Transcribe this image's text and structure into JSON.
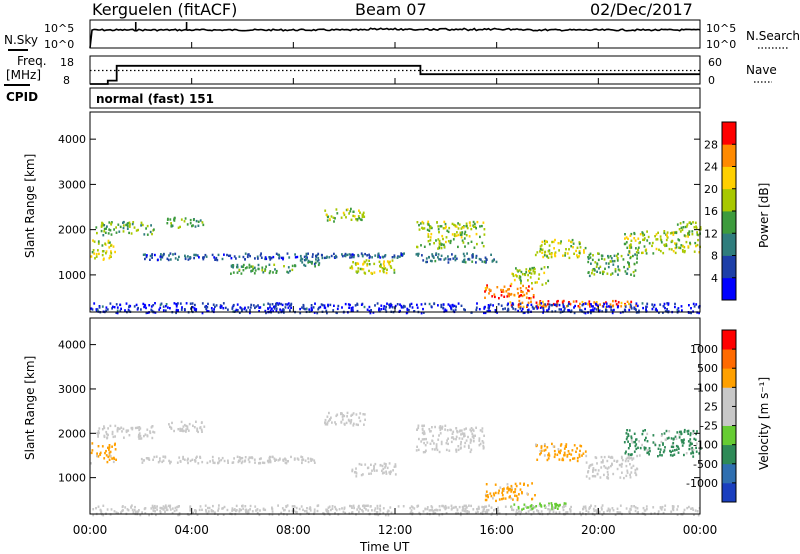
{
  "header": {
    "site": "Kerguelen (fitACF)",
    "beam": "Beam 07",
    "date": "02/Dec/2017"
  },
  "panels": {
    "nsky": {
      "label": "N.Sky",
      "left_ticks": [
        "10^5",
        "10^0"
      ],
      "right_ticks": [
        "10^5",
        "10^0"
      ],
      "right_label": "N.Search"
    },
    "freq": {
      "label_line1": "Freq.",
      "label_line2": "[MHz]",
      "left_ticks": [
        "18",
        "8"
      ],
      "right_ticks": [
        "60",
        "0"
      ],
      "right_label": "Nave",
      "cpid_label": "CPID"
    },
    "cpid": {
      "text": "normal (fast) 151"
    }
  },
  "chart_data": [
    {
      "type": "heatmap",
      "name_panel": "power",
      "ylabel": "Slant Range [km]",
      "xlabel": "Time UT",
      "x_range_hours": [
        0,
        24
      ],
      "ylim": [
        180,
        4600
      ],
      "y_ticks": [
        "1000",
        "2000",
        "3000",
        "4000"
      ],
      "x_ticks": [
        "00:00",
        "04:00",
        "08:00",
        "12:00",
        "16:00",
        "20:00",
        "00:00"
      ],
      "colorbar": {
        "label": "Power [dB]",
        "tick_labels": [
          "4",
          "8",
          "12",
          "16",
          "20",
          "24",
          "28"
        ],
        "colors": [
          "#0000ff",
          "#1d3fa8",
          "#2f7d7d",
          "#3d9b3d",
          "#a8c800",
          "#ffd000",
          "#ff8a00",
          "#ff0000"
        ]
      },
      "scatter_regions": [
        {
          "t0": 0.0,
          "t1": 1.0,
          "r0": 1350,
          "r1": 1800,
          "level": 0.62
        },
        {
          "t0": 0.2,
          "t1": 2.5,
          "r0": 1900,
          "r1": 2200,
          "level": 0.45
        },
        {
          "t0": 3.0,
          "t1": 4.5,
          "r0": 2050,
          "r1": 2300,
          "level": 0.4
        },
        {
          "t0": 2.0,
          "t1": 9.0,
          "r0": 1350,
          "r1": 1500,
          "level": 0.18
        },
        {
          "t0": 5.5,
          "t1": 8.0,
          "r0": 1050,
          "r1": 1250,
          "level": 0.4
        },
        {
          "t0": 8.0,
          "t1": 9.0,
          "r0": 1200,
          "r1": 1400,
          "level": 0.35
        },
        {
          "t0": 9.2,
          "t1": 10.8,
          "r0": 2200,
          "r1": 2500,
          "level": 0.55
        },
        {
          "t0": 10.2,
          "t1": 12.0,
          "r0": 1050,
          "r1": 1350,
          "level": 0.6
        },
        {
          "t0": 9.0,
          "t1": 13.0,
          "r0": 1400,
          "r1": 1500,
          "level": 0.2
        },
        {
          "t0": 12.8,
          "t1": 15.5,
          "r0": 1600,
          "r1": 2200,
          "level": 0.55
        },
        {
          "t0": 13.0,
          "t1": 16.0,
          "r0": 1300,
          "r1": 1500,
          "level": 0.25
        },
        {
          "t0": 15.5,
          "t1": 17.5,
          "r0": 500,
          "r1": 800,
          "level": 0.92
        },
        {
          "t0": 16.5,
          "t1": 21.5,
          "r0": 300,
          "r1": 450,
          "level": 0.88
        },
        {
          "t0": 17.5,
          "t1": 19.5,
          "r0": 1400,
          "r1": 1800,
          "level": 0.6
        },
        {
          "t0": 16.5,
          "t1": 18.0,
          "r0": 800,
          "r1": 1200,
          "level": 0.55
        },
        {
          "t0": 19.5,
          "t1": 21.5,
          "r0": 1000,
          "r1": 1500,
          "level": 0.45
        },
        {
          "t0": 21.0,
          "t1": 24.0,
          "r0": 1500,
          "r1": 2000,
          "level": 0.55
        },
        {
          "t0": 23.0,
          "t1": 24.0,
          "r0": 1900,
          "r1": 2200,
          "level": 0.5
        },
        {
          "t0": 0.0,
          "t1": 24.0,
          "r0": 180,
          "r1": 400,
          "level": 0.08
        }
      ]
    },
    {
      "type": "heatmap",
      "name_panel": "velocity",
      "ylabel": "Slant Range [km]",
      "xlabel": "Time UT",
      "x_range_hours": [
        0,
        24
      ],
      "ylim": [
        180,
        4600
      ],
      "y_ticks": [
        "1000",
        "2000",
        "3000",
        "4000"
      ],
      "x_ticks": [
        "00:00",
        "04:00",
        "08:00",
        "12:00",
        "16:00",
        "20:00",
        "00:00"
      ],
      "colorbar": {
        "label": "Velocity [m s⁻¹]",
        "tick_labels": [
          "1000",
          "500",
          "100",
          "25",
          "-25",
          "-100",
          "-500",
          "-1000"
        ],
        "colors": [
          "#1a3fbf",
          "#2f6fb0",
          "#2e8a57",
          "#66cc33",
          "#c8c8c8",
          "#c8c8c8",
          "#ffa000",
          "#ff6a00",
          "#ff0000"
        ]
      },
      "scatter_regions": [
        {
          "t0": 0.0,
          "t1": 1.0,
          "r0": 1350,
          "r1": 1800,
          "vcolor": "#ffa000"
        },
        {
          "t0": 0.2,
          "t1": 2.5,
          "r0": 1900,
          "r1": 2200,
          "vcolor": "#c8c8c8"
        },
        {
          "t0": 3.0,
          "t1": 4.5,
          "r0": 2050,
          "r1": 2300,
          "vcolor": "#c8c8c8"
        },
        {
          "t0": 2.0,
          "t1": 9.0,
          "r0": 1350,
          "r1": 1500,
          "vcolor": "#c8c8c8"
        },
        {
          "t0": 9.2,
          "t1": 10.8,
          "r0": 2200,
          "r1": 2500,
          "vcolor": "#c8c8c8"
        },
        {
          "t0": 10.2,
          "t1": 12.0,
          "r0": 1050,
          "r1": 1350,
          "vcolor": "#c8c8c8"
        },
        {
          "t0": 12.8,
          "t1": 15.5,
          "r0": 1600,
          "r1": 2200,
          "vcolor": "#c8c8c8"
        },
        {
          "t0": 15.5,
          "t1": 17.5,
          "r0": 500,
          "r1": 900,
          "vcolor": "#ffa000"
        },
        {
          "t0": 17.5,
          "t1": 19.5,
          "r0": 1400,
          "r1": 1800,
          "vcolor": "#ffa000"
        },
        {
          "t0": 16.5,
          "t1": 19.0,
          "r0": 300,
          "r1": 450,
          "vcolor": "#66cc33"
        },
        {
          "t0": 19.5,
          "t1": 21.5,
          "r0": 1000,
          "r1": 1500,
          "vcolor": "#c8c8c8"
        },
        {
          "t0": 21.0,
          "t1": 24.0,
          "r0": 1500,
          "r1": 2100,
          "vcolor": "#2e8a57"
        },
        {
          "t0": 0.0,
          "t1": 24.0,
          "r0": 180,
          "r1": 400,
          "vcolor": "#c8c8c8"
        }
      ]
    }
  ]
}
